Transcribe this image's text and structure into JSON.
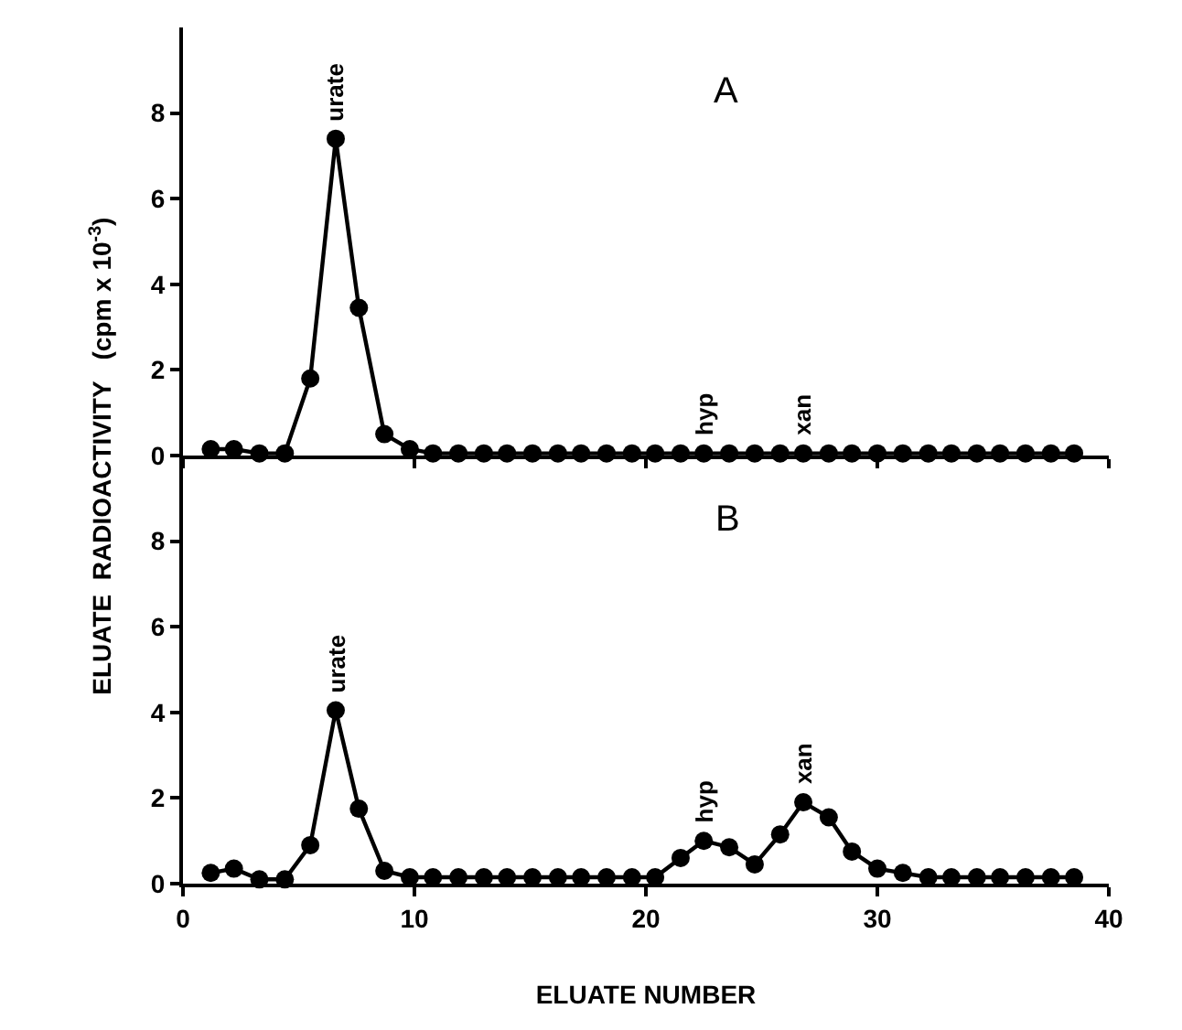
{
  "chart_data": [
    {
      "type": "line",
      "title": "A",
      "ylabel": "ELUATE  RADIOACTIVITY   (cpm x 10$^{-3}$)",
      "marker": "circle",
      "line_style": "solid",
      "grid": false,
      "tick_labels": "y",
      "x": [
        1.2,
        2.2,
        3.3,
        4.4,
        5.5,
        6.6,
        7.6,
        8.7,
        9.8,
        10.8,
        11.9,
        13.0,
        14.0,
        15.1,
        16.2,
        17.2,
        18.3,
        19.4,
        20.4,
        21.5,
        22.5,
        23.6,
        24.7,
        25.8,
        26.8,
        27.9,
        28.9,
        30.0,
        31.1,
        32.2,
        33.2,
        34.3,
        35.3,
        36.4,
        37.5,
        38.5
      ],
      "series": [
        {
          "color": "#000000",
          "values": [
            0.15,
            0.15,
            0.05,
            0.05,
            1.8,
            7.4,
            3.45,
            0.5,
            0.15,
            0.05,
            0.05,
            0.05,
            0.05,
            0.05,
            0.05,
            0.05,
            0.05,
            0.05,
            0.05,
            0.05,
            0.05,
            0.05,
            0.05,
            0.05,
            0.05,
            0.05,
            0.05,
            0.05,
            0.05,
            0.05,
            0.05,
            0.05,
            0.05,
            0.05,
            0.05,
            0.05
          ]
        }
      ],
      "annotations": [
        {
          "text": "urate",
          "x": 6.6,
          "y": 7.4
        },
        {
          "text": "hyp",
          "x": 22.5,
          "y": 0.05
        },
        {
          "text": "xan",
          "x": 26.8,
          "y": 0.05
        }
      ],
      "xlim": [
        0,
        40
      ],
      "xticks": [
        {
          "value": 0,
          "label": null
        },
        {
          "value": 10,
          "label": null
        },
        {
          "value": 20,
          "label": null
        },
        {
          "value": 30,
          "label": null
        },
        {
          "value": 40,
          "label": null
        }
      ],
      "ylim": [
        0,
        10
      ],
      "yticks": [
        0,
        2,
        4,
        6,
        8
      ]
    },
    {
      "type": "line",
      "title": "B",
      "xlabel": "ELUATE NUMBER",
      "marker": "circle",
      "line_style": "solid",
      "grid": false,
      "x": [
        1.2,
        2.2,
        3.3,
        4.4,
        5.5,
        6.6,
        7.6,
        8.7,
        9.8,
        10.8,
        11.9,
        13.0,
        14.0,
        15.1,
        16.2,
        17.2,
        18.3,
        19.4,
        20.4,
        21.5,
        22.5,
        23.6,
        24.7,
        25.8,
        26.8,
        27.9,
        28.9,
        30.0,
        31.1,
        32.2,
        33.2,
        34.3,
        35.3,
        36.4,
        37.5,
        38.5
      ],
      "series": [
        {
          "color": "#000000",
          "values": [
            0.25,
            0.35,
            0.1,
            0.1,
            0.9,
            4.05,
            1.75,
            0.3,
            0.15,
            0.15,
            0.15,
            0.15,
            0.15,
            0.15,
            0.15,
            0.15,
            0.15,
            0.15,
            0.15,
            0.6,
            1.0,
            0.85,
            0.45,
            1.15,
            1.9,
            1.55,
            0.75,
            0.35,
            0.25,
            0.15,
            0.15,
            0.15,
            0.15,
            0.15,
            0.15,
            0.15
          ]
        }
      ],
      "annotations": [
        {
          "text": "urate",
          "x": 6.6,
          "y": 4.05
        },
        {
          "text": "hyp",
          "x": 22.5,
          "y": 1.0
        },
        {
          "text": "xan",
          "x": 26.8,
          "y": 1.9
        }
      ],
      "xlim": [
        0,
        40
      ],
      "xticks": [
        0,
        10,
        20,
        30,
        40
      ],
      "ylim": [
        0,
        10
      ],
      "yticks": [
        0,
        2,
        4,
        6,
        8
      ]
    }
  ]
}
